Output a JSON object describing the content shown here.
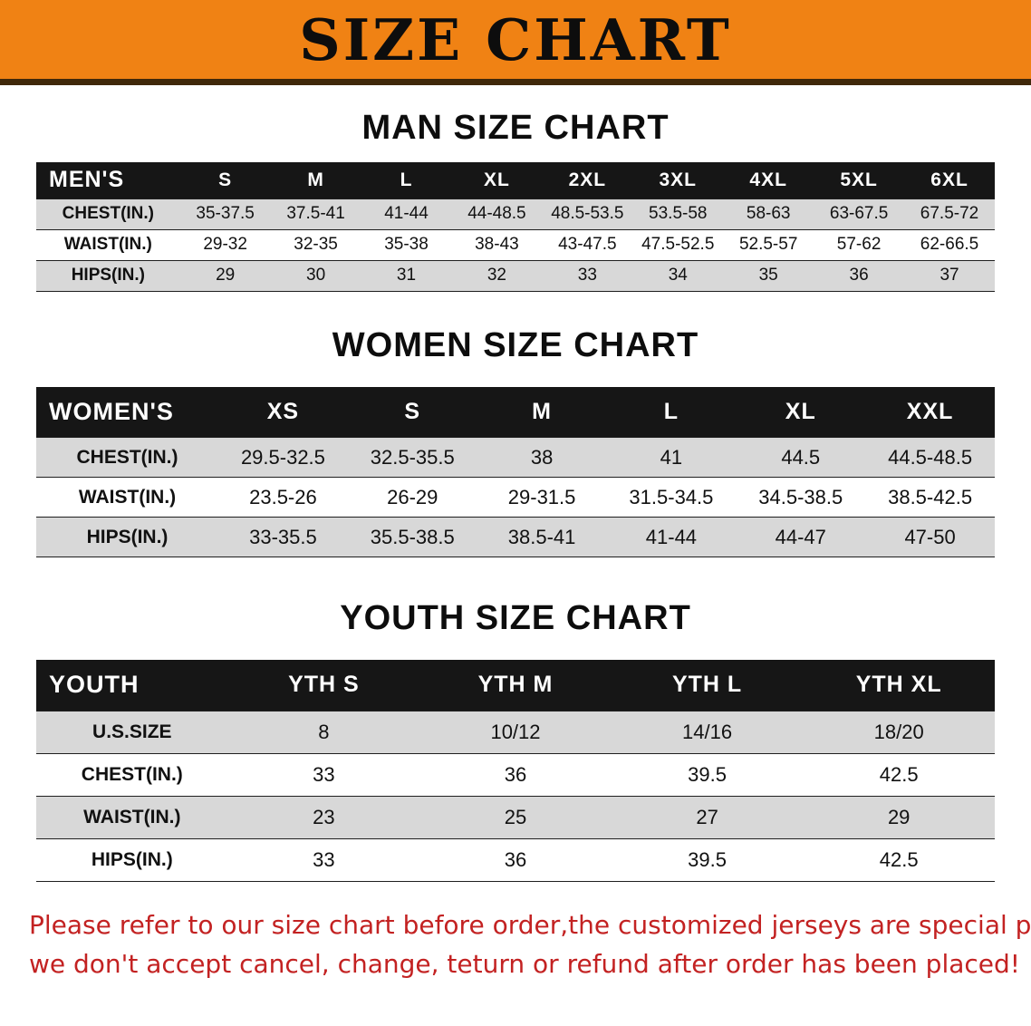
{
  "banner": {
    "title": "SIZE CHART"
  },
  "colors": {
    "banner_bg": "#f08214",
    "banner_border": "#40280a",
    "title_text": "#0d0d0d",
    "table_header_bg": "#161616",
    "table_header_text": "#ffffff",
    "row_shade": "#d8d8d8",
    "note_text": "#c32222"
  },
  "men": {
    "heading": "MAN SIZE CHART",
    "table": {
      "corner": "MEN'S",
      "columns": [
        "S",
        "M",
        "L",
        "XL",
        "2XL",
        "3XL",
        "4XL",
        "5XL",
        "6XL"
      ],
      "rows": [
        {
          "label": "CHEST(IN.)",
          "values": [
            "35-37.5",
            "37.5-41",
            "41-44",
            "44-48.5",
            "48.5-53.5",
            "53.5-58",
            "58-63",
            "63-67.5",
            "67.5-72"
          ]
        },
        {
          "label": "WAIST(IN.)",
          "values": [
            "29-32",
            "32-35",
            "35-38",
            "38-43",
            "43-47.5",
            "47.5-52.5",
            "52.5-57",
            "57-62",
            "62-66.5"
          ]
        },
        {
          "label": "HIPS(IN.)",
          "values": [
            "29",
            "30",
            "31",
            "32",
            "33",
            "34",
            "35",
            "36",
            "37"
          ]
        }
      ]
    }
  },
  "women": {
    "heading": "WOMEN SIZE CHART",
    "table": {
      "corner": "WOMEN'S",
      "columns": [
        "XS",
        "S",
        "M",
        "L",
        "XL",
        "XXL"
      ],
      "rows": [
        {
          "label": "CHEST(IN.)",
          "values": [
            "29.5-32.5",
            "32.5-35.5",
            "38",
            "41",
            "44.5",
            "44.5-48.5"
          ]
        },
        {
          "label": "WAIST(IN.)",
          "values": [
            "23.5-26",
            "26-29",
            "29-31.5",
            "31.5-34.5",
            "34.5-38.5",
            "38.5-42.5"
          ]
        },
        {
          "label": "HIPS(IN.)",
          "values": [
            "33-35.5",
            "35.5-38.5",
            "38.5-41",
            "41-44",
            "44-47",
            "47-50"
          ]
        }
      ]
    }
  },
  "youth": {
    "heading": "YOUTH SIZE CHART",
    "table": {
      "corner": "YOUTH",
      "columns": [
        "YTH S",
        "YTH M",
        "YTH L",
        "YTH XL"
      ],
      "rows": [
        {
          "label": "U.S.SIZE",
          "values": [
            "8",
            "10/12",
            "14/16",
            "18/20"
          ]
        },
        {
          "label": "CHEST(IN.)",
          "values": [
            "33",
            "36",
            "39.5",
            "42.5"
          ]
        },
        {
          "label": "WAIST(IN.)",
          "values": [
            "23",
            "25",
            "27",
            "29"
          ]
        },
        {
          "label": "HIPS(IN.)",
          "values": [
            "33",
            "36",
            "39.5",
            "42.5"
          ]
        }
      ]
    }
  },
  "note": {
    "line1": "Please refer to our size chart before order,the customized jerseys are special products,",
    "line2": "we don't accept cancel, change, teturn or refund after order has been placed!"
  }
}
